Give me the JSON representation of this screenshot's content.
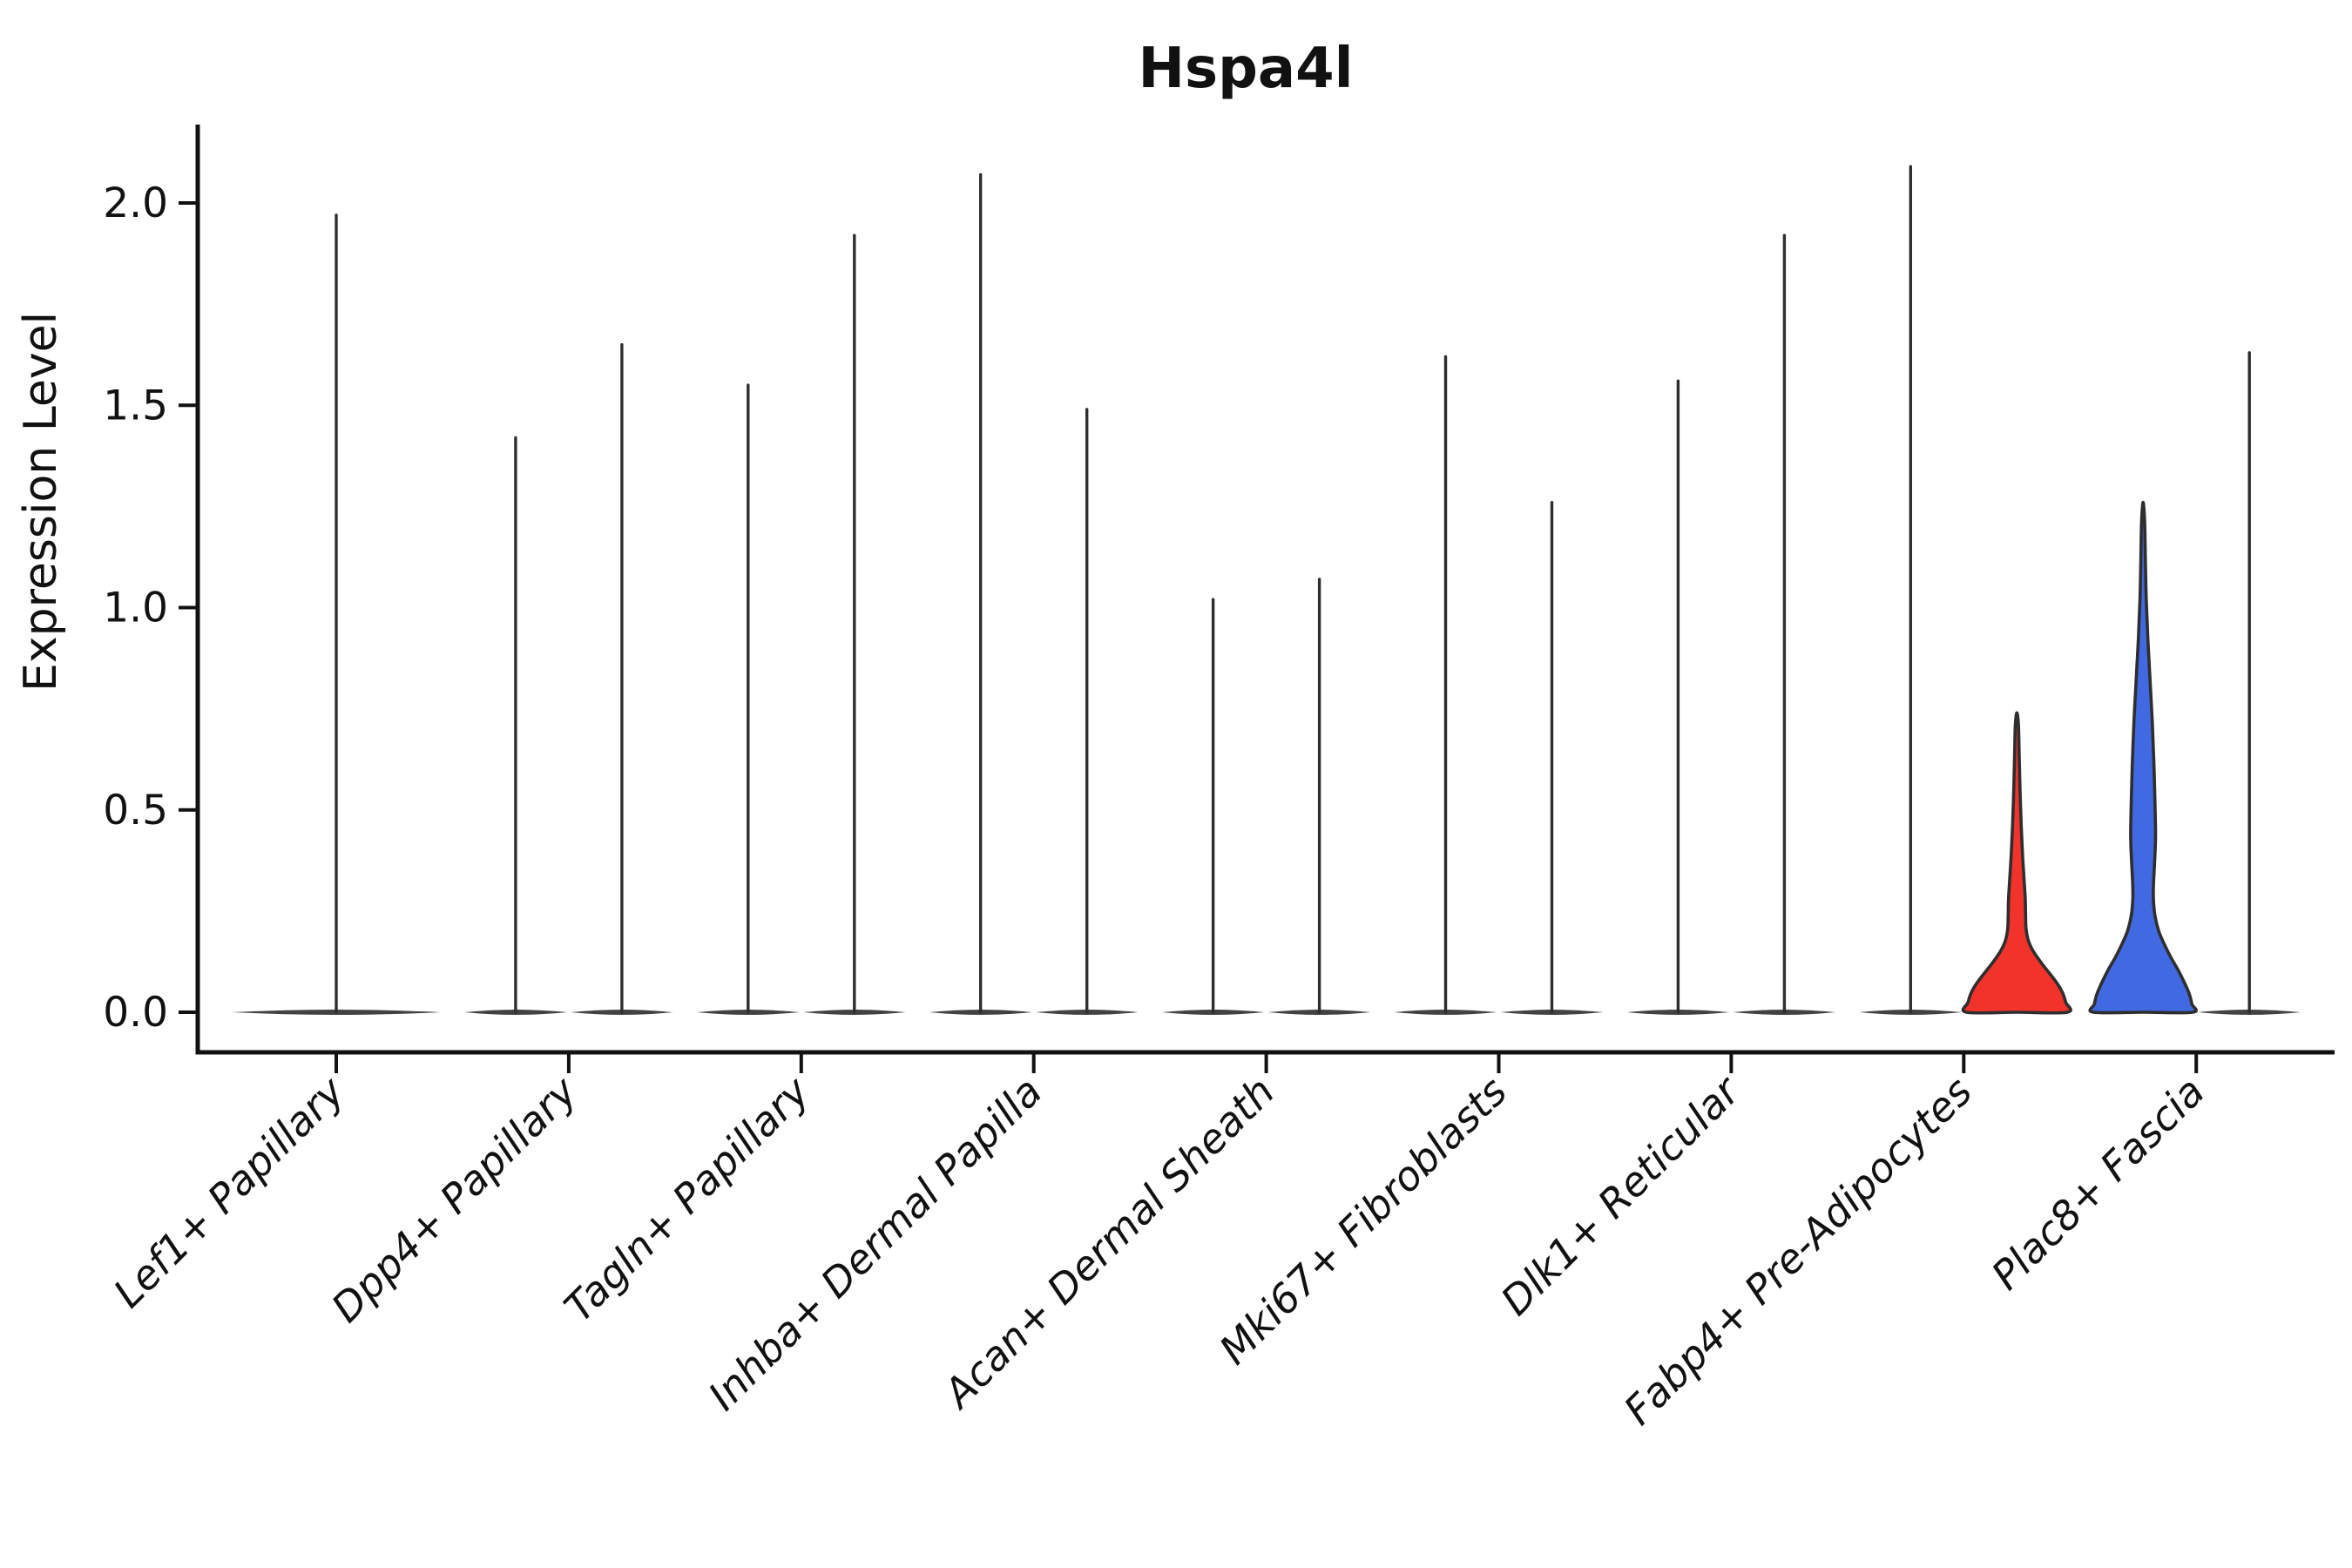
{
  "title": "Hspa4l",
  "y_axis": {
    "label": "Expression Level",
    "tick_labels": [
      "0.0",
      "0.5",
      "1.0",
      "1.5",
      "2.0"
    ],
    "tick_values": [
      0.0,
      0.5,
      1.0,
      1.5,
      2.0
    ]
  },
  "x_axis": {
    "categories": [
      "Lef1+ Papillary",
      "Dpp4+ Papillary",
      "Tagln+ Papillary",
      "Inhba+ Dermal Papilla",
      "Acan+ Dermal Sheath",
      "Mki67+ Fibroblasts",
      "Dlk1+ Reticular",
      "Fabp4+ Pre-Adipocytes",
      "Plac8+ Fascia"
    ]
  },
  "colors": {
    "outline": "#2e2e2e",
    "spine": "#111111",
    "red_fill": "#f2332b",
    "blue_fill": "#4169e1",
    "background": "#ffffff"
  },
  "chart_data": {
    "type": "violin",
    "title": "Hspa4l",
    "xlabel": "",
    "ylabel": "Expression Level",
    "ylim": [
      -0.1,
      2.19
    ],
    "yticks": [
      0.0,
      0.5,
      1.0,
      1.5,
      2.0
    ],
    "grid": false,
    "legend": false,
    "categories": [
      "Lef1+ Papillary",
      "Dpp4+ Papillary",
      "Tagln+ Papillary",
      "Inhba+ Dermal Papilla",
      "Acan+ Dermal Sheath",
      "Mki67+ Fibroblasts",
      "Dlk1+ Reticular",
      "Fabp4+ Pre-Adipocytes",
      "Plac8+ Fascia"
    ],
    "description": "Each category shows narrow spike violins rising from a wide flat base at expression 0; Fabp4+ Pre-Adipocytes right violin is filled red, Plac8+ Fascia left violin is filled blue.",
    "violins": [
      {
        "category": "Lef1+ Papillary",
        "side": "center",
        "max": 1.97,
        "fill": "none"
      },
      {
        "category": "Dpp4+ Papillary",
        "side": "left",
        "max": 1.42,
        "fill": "none"
      },
      {
        "category": "Dpp4+ Papillary",
        "side": "right",
        "max": 1.65,
        "fill": "none"
      },
      {
        "category": "Tagln+ Papillary",
        "side": "left",
        "max": 1.55,
        "fill": "none"
      },
      {
        "category": "Tagln+ Papillary",
        "side": "right",
        "max": 1.92,
        "fill": "none"
      },
      {
        "category": "Inhba+ Dermal Papilla",
        "side": "left",
        "max": 2.07,
        "fill": "none"
      },
      {
        "category": "Inhba+ Dermal Papilla",
        "side": "right",
        "max": 1.49,
        "fill": "none"
      },
      {
        "category": "Acan+ Dermal Sheath",
        "side": "left",
        "max": 1.02,
        "fill": "none"
      },
      {
        "category": "Acan+ Dermal Sheath",
        "side": "right",
        "max": 1.07,
        "fill": "none"
      },
      {
        "category": "Mki67+ Fibroblasts",
        "side": "left",
        "max": 1.62,
        "fill": "none"
      },
      {
        "category": "Mki67+ Fibroblasts",
        "side": "right",
        "max": 1.26,
        "fill": "none"
      },
      {
        "category": "Dlk1+ Reticular",
        "side": "left",
        "max": 1.56,
        "fill": "none"
      },
      {
        "category": "Dlk1+ Reticular",
        "side": "right",
        "max": 1.92,
        "fill": "none"
      },
      {
        "category": "Fabp4+ Pre-Adipocytes",
        "side": "left",
        "max": 2.09,
        "fill": "none"
      },
      {
        "category": "Fabp4+ Pre-Adipocytes",
        "side": "right",
        "max": 0.74,
        "fill": "red",
        "profile": [
          [
            0.74,
            0
          ],
          [
            0.71,
            1.8
          ],
          [
            0.64,
            2.6
          ],
          [
            0.55,
            3.6
          ],
          [
            0.46,
            5.0
          ],
          [
            0.39,
            6.5
          ],
          [
            0.33,
            8.2
          ],
          [
            0.28,
            9.6
          ],
          [
            0.24,
            10.0
          ],
          [
            0.205,
            10.6
          ],
          [
            0.175,
            13.5
          ],
          [
            0.15,
            19
          ],
          [
            0.125,
            27
          ],
          [
            0.1,
            36
          ],
          [
            0.075,
            45
          ],
          [
            0.05,
            52
          ],
          [
            0.025,
            56
          ],
          [
            0.0,
            58
          ]
        ]
      },
      {
        "category": "Plac8+ Fascia",
        "side": "left",
        "max": 1.26,
        "fill": "blue",
        "profile": [
          [
            1.26,
            0
          ],
          [
            1.21,
            1.8
          ],
          [
            1.12,
            2.6
          ],
          [
            1.02,
            3.6
          ],
          [
            0.92,
            5.5
          ],
          [
            0.82,
            8.0
          ],
          [
            0.72,
            10.5
          ],
          [
            0.62,
            12.3
          ],
          [
            0.52,
            13.6
          ],
          [
            0.44,
            14.3
          ],
          [
            0.38,
            13.4
          ],
          [
            0.32,
            12.0
          ],
          [
            0.28,
            11.8
          ],
          [
            0.24,
            13.5
          ],
          [
            0.2,
            18
          ],
          [
            0.165,
            25
          ],
          [
            0.135,
            32
          ],
          [
            0.105,
            40
          ],
          [
            0.075,
            47
          ],
          [
            0.045,
            53
          ],
          [
            0.02,
            56
          ],
          [
            0.0,
            57
          ]
        ]
      },
      {
        "category": "Plac8+ Fascia",
        "side": "right",
        "max": 1.63,
        "fill": "none"
      }
    ]
  }
}
